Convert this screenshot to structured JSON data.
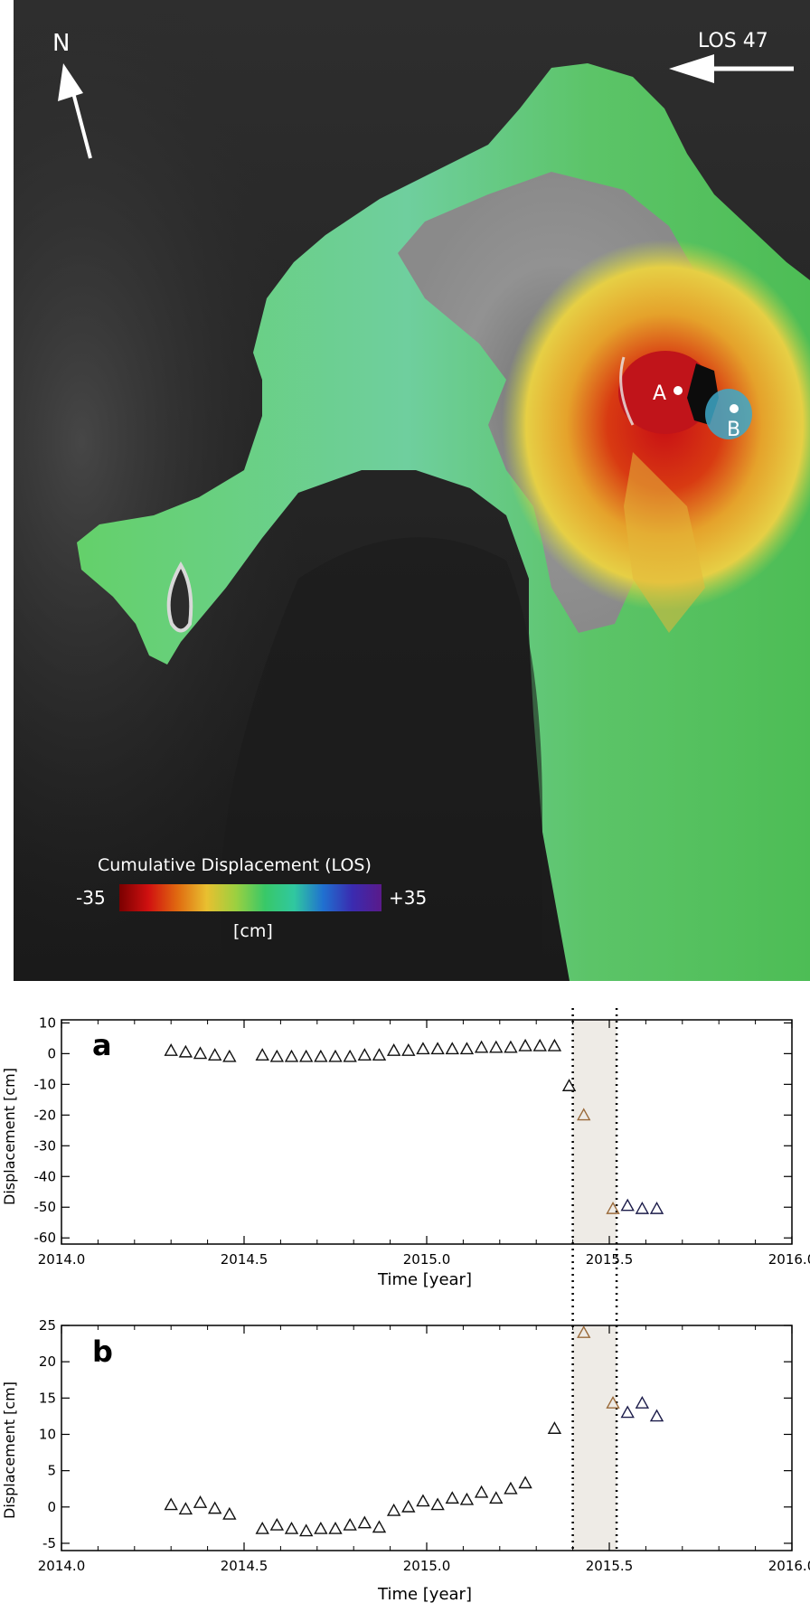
{
  "map": {
    "north_label": "N",
    "los_label": "LOS 47",
    "point_a_label": "A",
    "point_b_label": "B",
    "colorbar_title": "Cumulative Displacement (LOS)",
    "colorbar_min_label": "-35",
    "colorbar_max_label": "+35",
    "colorbar_unit": "[cm]",
    "colors": {
      "background": "#2a2a2a",
      "sea_dark": "#1c1c1c",
      "land_green": "#54c45a",
      "land_teal": "#6ecfa8",
      "crater_gray": "#8e8e8e",
      "deform_red": "#c8141a",
      "deform_yellow": "#e9c33a",
      "deform_blue": "#3a9ed0"
    },
    "colorbar_stops": [
      "#7a0000",
      "#d01010",
      "#e06a10",
      "#e8c030",
      "#9cd040",
      "#38c868",
      "#30c8a0",
      "#2070d0",
      "#3a2bb0",
      "#5a1a8a"
    ]
  },
  "chart_data": [
    {
      "type": "scatter",
      "panel_label": "a",
      "title": "",
      "xlabel": "Time [year]",
      "ylabel": "Displacement [cm]",
      "xlim": [
        2014.0,
        2016.0
      ],
      "ylim": [
        -62,
        11
      ],
      "xticks": [
        2014.0,
        2014.5,
        2015.0,
        2015.5,
        2016.0
      ],
      "xtick_labels": [
        "2014.0",
        "2014.5",
        "2015.0",
        "2015.5",
        "2016.0"
      ],
      "yticks": [
        10,
        0,
        -10,
        -20,
        -30,
        -40,
        -50,
        -60
      ],
      "ytick_labels": [
        "10",
        "0",
        "-10",
        "-20",
        "-30",
        "-40",
        "-50",
        "-60"
      ],
      "shaded_interval": [
        2015.4,
        2015.52
      ],
      "vlines": [
        2015.4,
        2015.52
      ],
      "marker": "triangle-open",
      "colors": {
        "default": "#111111",
        "highlight": "#9a6a3a",
        "post": "#1c1c4a"
      },
      "points": [
        {
          "x": 2014.3,
          "y": 1.0,
          "c": "default"
        },
        {
          "x": 2014.34,
          "y": 0.5,
          "c": "default"
        },
        {
          "x": 2014.38,
          "y": 0.0,
          "c": "default"
        },
        {
          "x": 2014.42,
          "y": -0.5,
          "c": "default"
        },
        {
          "x": 2014.46,
          "y": -1.0,
          "c": "default"
        },
        {
          "x": 2014.55,
          "y": -0.5,
          "c": "default"
        },
        {
          "x": 2014.59,
          "y": -1.0,
          "c": "default"
        },
        {
          "x": 2014.63,
          "y": -1.0,
          "c": "default"
        },
        {
          "x": 2014.67,
          "y": -1.0,
          "c": "default"
        },
        {
          "x": 2014.71,
          "y": -1.0,
          "c": "default"
        },
        {
          "x": 2014.75,
          "y": -1.0,
          "c": "default"
        },
        {
          "x": 2014.79,
          "y": -1.0,
          "c": "default"
        },
        {
          "x": 2014.83,
          "y": -0.5,
          "c": "default"
        },
        {
          "x": 2014.87,
          "y": -0.5,
          "c": "default"
        },
        {
          "x": 2014.91,
          "y": 1.0,
          "c": "default"
        },
        {
          "x": 2014.95,
          "y": 1.0,
          "c": "default"
        },
        {
          "x": 2014.99,
          "y": 1.5,
          "c": "default"
        },
        {
          "x": 2015.03,
          "y": 1.5,
          "c": "default"
        },
        {
          "x": 2015.07,
          "y": 1.5,
          "c": "default"
        },
        {
          "x": 2015.11,
          "y": 1.5,
          "c": "default"
        },
        {
          "x": 2015.15,
          "y": 2.0,
          "c": "default"
        },
        {
          "x": 2015.19,
          "y": 2.0,
          "c": "default"
        },
        {
          "x": 2015.23,
          "y": 2.0,
          "c": "default"
        },
        {
          "x": 2015.27,
          "y": 2.5,
          "c": "default"
        },
        {
          "x": 2015.31,
          "y": 2.5,
          "c": "default"
        },
        {
          "x": 2015.35,
          "y": 2.5,
          "c": "default"
        },
        {
          "x": 2015.39,
          "y": -10.5,
          "c": "default"
        },
        {
          "x": 2015.43,
          "y": -20.0,
          "c": "highlight"
        },
        {
          "x": 2015.51,
          "y": -50.5,
          "c": "highlight"
        },
        {
          "x": 2015.55,
          "y": -49.5,
          "c": "post"
        },
        {
          "x": 2015.59,
          "y": -50.5,
          "c": "post"
        },
        {
          "x": 2015.63,
          "y": -50.5,
          "c": "post"
        }
      ]
    },
    {
      "type": "scatter",
      "panel_label": "b",
      "title": "",
      "xlabel": "Time [year]",
      "ylabel": "Displacement [cm]",
      "xlim": [
        2014.0,
        2016.0
      ],
      "ylim": [
        -6,
        25
      ],
      "xticks": [
        2014.0,
        2014.5,
        2015.0,
        2015.5,
        2016.0
      ],
      "xtick_labels": [
        "2014.0",
        "2014.5",
        "2015.0",
        "2015.5",
        "2016.0"
      ],
      "yticks": [
        25,
        20,
        15,
        10,
        5,
        0,
        -5
      ],
      "ytick_labels": [
        "25",
        "20",
        "15",
        "10",
        "5",
        "0",
        "-5"
      ],
      "shaded_interval": [
        2015.4,
        2015.52
      ],
      "vlines": [
        2015.4,
        2015.52
      ],
      "marker": "triangle-open",
      "colors": {
        "default": "#111111",
        "highlight": "#9a6a3a",
        "post": "#1c1c4a"
      },
      "points": [
        {
          "x": 2014.3,
          "y": 0.3,
          "c": "default"
        },
        {
          "x": 2014.34,
          "y": -0.3,
          "c": "default"
        },
        {
          "x": 2014.38,
          "y": 0.6,
          "c": "default"
        },
        {
          "x": 2014.42,
          "y": -0.2,
          "c": "default"
        },
        {
          "x": 2014.46,
          "y": -1.0,
          "c": "default"
        },
        {
          "x": 2014.55,
          "y": -3.0,
          "c": "default"
        },
        {
          "x": 2014.59,
          "y": -2.5,
          "c": "default"
        },
        {
          "x": 2014.63,
          "y": -3.0,
          "c": "default"
        },
        {
          "x": 2014.67,
          "y": -3.3,
          "c": "default"
        },
        {
          "x": 2014.71,
          "y": -3.0,
          "c": "default"
        },
        {
          "x": 2014.75,
          "y": -3.0,
          "c": "default"
        },
        {
          "x": 2014.79,
          "y": -2.5,
          "c": "default"
        },
        {
          "x": 2014.83,
          "y": -2.2,
          "c": "default"
        },
        {
          "x": 2014.87,
          "y": -2.8,
          "c": "default"
        },
        {
          "x": 2014.91,
          "y": -0.5,
          "c": "default"
        },
        {
          "x": 2014.95,
          "y": 0.0,
          "c": "default"
        },
        {
          "x": 2014.99,
          "y": 0.8,
          "c": "default"
        },
        {
          "x": 2015.03,
          "y": 0.3,
          "c": "default"
        },
        {
          "x": 2015.07,
          "y": 1.2,
          "c": "default"
        },
        {
          "x": 2015.11,
          "y": 1.0,
          "c": "default"
        },
        {
          "x": 2015.15,
          "y": 2.0,
          "c": "default"
        },
        {
          "x": 2015.19,
          "y": 1.2,
          "c": "default"
        },
        {
          "x": 2015.23,
          "y": 2.5,
          "c": "default"
        },
        {
          "x": 2015.27,
          "y": 3.3,
          "c": "default"
        },
        {
          "x": 2015.35,
          "y": 10.8,
          "c": "default"
        },
        {
          "x": 2015.43,
          "y": 24.0,
          "c": "highlight"
        },
        {
          "x": 2015.51,
          "y": 14.3,
          "c": "highlight"
        },
        {
          "x": 2015.55,
          "y": 13.0,
          "c": "post"
        },
        {
          "x": 2015.59,
          "y": 14.3,
          "c": "post"
        },
        {
          "x": 2015.63,
          "y": 12.5,
          "c": "post"
        }
      ]
    }
  ]
}
